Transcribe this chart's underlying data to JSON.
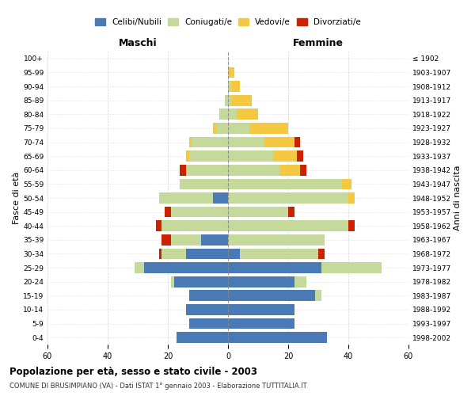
{
  "age_groups": [
    "0-4",
    "5-9",
    "10-14",
    "15-19",
    "20-24",
    "25-29",
    "30-34",
    "35-39",
    "40-44",
    "45-49",
    "50-54",
    "55-59",
    "60-64",
    "65-69",
    "70-74",
    "75-79",
    "80-84",
    "85-89",
    "90-94",
    "95-99",
    "100+"
  ],
  "birth_years": [
    "1998-2002",
    "1993-1997",
    "1988-1992",
    "1983-1987",
    "1978-1982",
    "1973-1977",
    "1968-1972",
    "1963-1967",
    "1958-1962",
    "1953-1957",
    "1948-1952",
    "1943-1947",
    "1938-1942",
    "1933-1937",
    "1928-1932",
    "1923-1927",
    "1918-1922",
    "1913-1917",
    "1908-1912",
    "1903-1907",
    "≤ 1902"
  ],
  "male": {
    "celibi": [
      17,
      13,
      14,
      13,
      18,
      28,
      14,
      9,
      0,
      0,
      5,
      0,
      0,
      0,
      0,
      0,
      0,
      0,
      0,
      0,
      0
    ],
    "coniugati": [
      0,
      0,
      0,
      0,
      1,
      3,
      8,
      10,
      22,
      19,
      18,
      16,
      14,
      13,
      12,
      4,
      3,
      1,
      0,
      0,
      0
    ],
    "vedovi": [
      0,
      0,
      0,
      0,
      0,
      0,
      0,
      0,
      0,
      0,
      0,
      0,
      0,
      1,
      1,
      1,
      0,
      0,
      0,
      0,
      0
    ],
    "divorziati": [
      0,
      0,
      0,
      0,
      0,
      0,
      1,
      3,
      2,
      2,
      0,
      0,
      2,
      0,
      0,
      0,
      0,
      0,
      0,
      0,
      0
    ]
  },
  "female": {
    "nubili": [
      33,
      22,
      22,
      29,
      22,
      31,
      4,
      0,
      0,
      0,
      0,
      0,
      0,
      0,
      0,
      0,
      0,
      0,
      0,
      0,
      0
    ],
    "coniugate": [
      0,
      0,
      0,
      2,
      4,
      20,
      26,
      32,
      40,
      20,
      40,
      38,
      17,
      15,
      12,
      7,
      3,
      1,
      1,
      0,
      0
    ],
    "vedove": [
      0,
      0,
      0,
      0,
      0,
      0,
      0,
      0,
      0,
      0,
      2,
      3,
      7,
      8,
      10,
      13,
      7,
      7,
      3,
      2,
      0
    ],
    "divorziate": [
      0,
      0,
      0,
      0,
      0,
      0,
      2,
      0,
      2,
      2,
      0,
      0,
      2,
      2,
      2,
      0,
      0,
      0,
      0,
      0,
      0
    ]
  },
  "colors": {
    "celibi": "#4a7ab5",
    "coniugati": "#c5d99a",
    "vedovi": "#f5c842",
    "divorziati": "#cc2200"
  },
  "xlim": 60,
  "title": "Popolazione per età, sesso e stato civile - 2003",
  "subtitle": "COMUNE DI BRUSIMPIANO (VA) - Dati ISTAT 1° gennaio 2003 - Elaborazione TUTTITALIA.IT",
  "ylabel_left": "Fasce di età",
  "ylabel_right": "Anni di nascita",
  "xlabel_left": "Maschi",
  "xlabel_right": "Femmine",
  "bg_color": "#ffffff",
  "grid_color": "#cccccc"
}
